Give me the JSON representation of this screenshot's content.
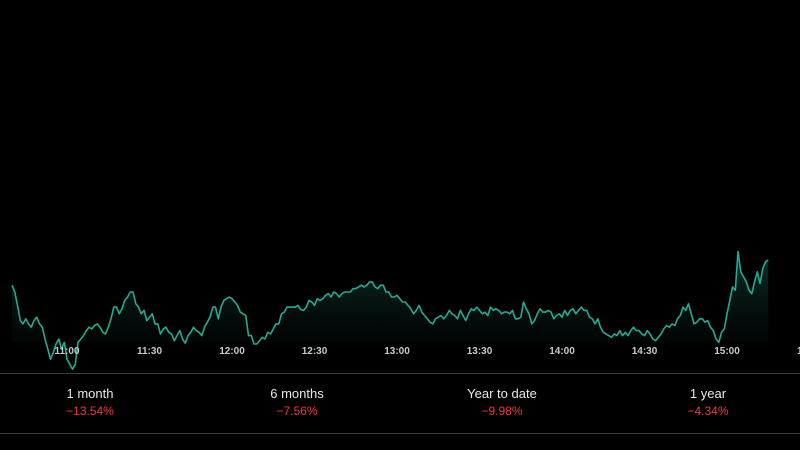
{
  "chart_data": {
    "type": "area",
    "line_color": "#22ab94",
    "fill_color": "#0f3a32",
    "background": "#000000",
    "x_tick_labels": [
      "11:00",
      "11:30",
      "12:00",
      "12:30",
      "13:00",
      "13:30",
      "14:00",
      "14:30",
      "15:00",
      "1"
    ],
    "x": [
      "10:40",
      "10:41",
      "10:42",
      "10:43",
      "10:44",
      "10:45",
      "10:46",
      "10:47",
      "10:48",
      "10:49",
      "10:50",
      "10:51",
      "10:52",
      "10:53",
      "10:54",
      "10:55",
      "10:56",
      "10:57",
      "10:58",
      "10:59",
      "11:00",
      "11:01",
      "11:02",
      "11:03",
      "11:04",
      "11:05",
      "11:06",
      "11:07",
      "11:08",
      "11:09",
      "11:10",
      "11:11",
      "11:12",
      "11:13",
      "11:14",
      "11:15",
      "11:16",
      "11:17",
      "11:18",
      "11:19",
      "11:20",
      "11:21",
      "11:22",
      "11:23",
      "11:24",
      "11:25",
      "11:26",
      "11:27",
      "11:28",
      "11:29",
      "11:30",
      "11:31",
      "11:32",
      "11:33",
      "11:34",
      "11:35",
      "11:36",
      "11:37",
      "11:38",
      "11:39",
      "11:40",
      "11:41",
      "11:42",
      "11:43",
      "11:44",
      "11:45",
      "11:46",
      "11:47",
      "11:48",
      "11:49",
      "11:50",
      "11:51",
      "11:52",
      "11:53",
      "11:54",
      "11:55",
      "11:56",
      "11:57",
      "11:58",
      "11:59",
      "12:00",
      "12:01",
      "12:02",
      "12:03",
      "12:04",
      "12:05",
      "12:06",
      "12:07",
      "12:08",
      "12:09",
      "12:10",
      "12:11",
      "12:12",
      "12:13",
      "12:14",
      "12:15",
      "12:16",
      "12:17",
      "12:18",
      "12:19",
      "12:20",
      "12:21",
      "12:22",
      "12:23",
      "12:24",
      "12:25",
      "12:26",
      "12:27",
      "12:28",
      "12:29",
      "12:30",
      "12:31",
      "12:32",
      "12:33",
      "12:34",
      "12:35",
      "12:36",
      "12:37",
      "12:38",
      "12:39",
      "12:40",
      "12:41",
      "12:42",
      "12:43",
      "12:44",
      "12:45",
      "12:46",
      "12:47",
      "12:48",
      "12:49",
      "12:50",
      "12:51",
      "12:52",
      "12:53",
      "12:54",
      "12:55",
      "12:56",
      "12:57",
      "12:58",
      "12:59",
      "13:00",
      "13:01",
      "13:02",
      "13:03",
      "13:04",
      "13:05",
      "13:06",
      "13:07",
      "13:08",
      "13:09",
      "13:10",
      "13:11",
      "13:12",
      "13:13",
      "13:14",
      "13:15",
      "13:16",
      "13:17",
      "13:18",
      "13:19",
      "13:20",
      "13:21",
      "13:22",
      "13:23",
      "13:24",
      "13:25",
      "13:26",
      "13:27",
      "13:28",
      "13:29",
      "13:30",
      "13:31",
      "13:32",
      "13:33",
      "13:34",
      "13:35",
      "13:36",
      "13:37",
      "13:38",
      "13:39",
      "13:40",
      "13:41",
      "13:42",
      "13:43",
      "13:44",
      "13:45",
      "13:46",
      "13:47",
      "13:48",
      "13:49",
      "13:50",
      "13:51",
      "13:52",
      "13:53",
      "13:54",
      "13:55",
      "13:56",
      "13:57",
      "13:58",
      "13:59",
      "14:00",
      "14:01",
      "14:02",
      "14:03",
      "14:04",
      "14:05",
      "14:06",
      "14:07",
      "14:08",
      "14:09",
      "14:10",
      "14:11",
      "14:12",
      "14:13",
      "14:14",
      "14:15",
      "14:16",
      "14:17",
      "14:18",
      "14:19",
      "14:20",
      "14:21",
      "14:22",
      "14:23",
      "14:24",
      "14:25",
      "14:26",
      "14:27",
      "14:28",
      "14:29",
      "14:30",
      "14:31",
      "14:32",
      "14:33",
      "14:34",
      "14:35",
      "14:36",
      "14:37",
      "14:38",
      "14:39",
      "14:40",
      "14:41",
      "14:42",
      "14:43",
      "14:44",
      "14:45",
      "14:46",
      "14:47",
      "14:48",
      "14:49",
      "14:50",
      "14:51",
      "14:52",
      "14:53",
      "14:54",
      "14:55",
      "14:56",
      "14:57",
      "14:58",
      "14:59",
      "15:00",
      "15:01",
      "15:02",
      "15:03",
      "15:04",
      "15:05",
      "15:06",
      "15:07",
      "15:08",
      "15:09",
      "15:10",
      "15:11",
      "15:12",
      "15:13",
      "15:14",
      "15:15"
    ],
    "values": [
      236,
      244,
      260,
      278,
      282,
      276,
      282,
      286,
      278,
      274,
      282,
      286,
      300,
      312,
      324,
      316,
      306,
      300,
      312,
      304,
      324,
      330,
      336,
      330,
      304,
      300,
      296,
      290,
      286,
      288,
      284,
      282,
      286,
      292,
      294,
      286,
      276,
      262,
      262,
      270,
      264,
      254,
      250,
      244,
      244,
      258,
      262,
      270,
      266,
      278,
      274,
      270,
      282,
      282,
      294,
      288,
      286,
      292,
      294,
      302,
      296,
      290,
      300,
      305,
      296,
      292,
      286,
      290,
      292,
      296,
      286,
      280,
      274,
      262,
      262,
      276,
      262,
      254,
      252,
      250,
      252,
      256,
      260,
      268,
      270,
      272,
      296,
      296,
      306,
      306,
      302,
      298,
      300,
      292,
      294,
      288,
      282,
      282,
      270,
      268,
      262,
      262,
      262,
      262,
      260,
      265,
      266,
      262,
      254,
      256,
      260,
      252,
      254,
      252,
      248,
      246,
      250,
      244,
      246,
      250,
      246,
      244,
      244,
      244,
      240,
      240,
      238,
      236,
      238,
      236,
      232,
      232,
      238,
      240,
      236,
      236,
      244,
      244,
      250,
      250,
      248,
      252,
      256,
      256,
      260,
      264,
      270,
      266,
      260,
      268,
      272,
      276,
      280,
      282,
      276,
      274,
      272,
      276,
      272,
      266,
      270,
      272,
      276,
      266,
      272,
      278,
      270,
      264,
      266,
      262,
      266,
      270,
      268,
      272,
      262,
      266,
      264,
      266,
      270,
      268,
      268,
      270,
      266,
      276,
      276,
      274,
      256,
      264,
      270,
      282,
      278,
      270,
      264,
      268,
      268,
      266,
      268,
      276,
      272,
      270,
      274,
      266,
      272,
      266,
      264,
      270,
      266,
      262,
      266,
      266,
      274,
      276,
      282,
      276,
      286,
      292,
      294,
      296,
      298,
      294,
      296,
      290,
      296,
      292,
      296,
      290,
      286,
      290,
      290,
      294,
      296,
      290,
      294,
      300,
      302,
      298,
      294,
      288,
      284,
      286,
      282,
      284,
      276,
      272,
      262,
      266,
      258,
      270,
      282,
      280,
      276,
      276,
      280,
      278,
      286,
      290,
      300,
      304,
      292,
      288,
      270,
      254,
      238,
      242,
      196,
      220,
      226,
      232,
      242,
      246,
      232,
      220,
      234,
      216,
      208,
      206
    ],
    "performance": [
      {
        "label": "1 month",
        "value": "−13.54%"
      },
      {
        "label": "6 months",
        "value": "−7.56%"
      },
      {
        "label": "Year to date",
        "value": "−9.98%"
      },
      {
        "label": "1 year",
        "value": "−4.34%"
      }
    ]
  }
}
